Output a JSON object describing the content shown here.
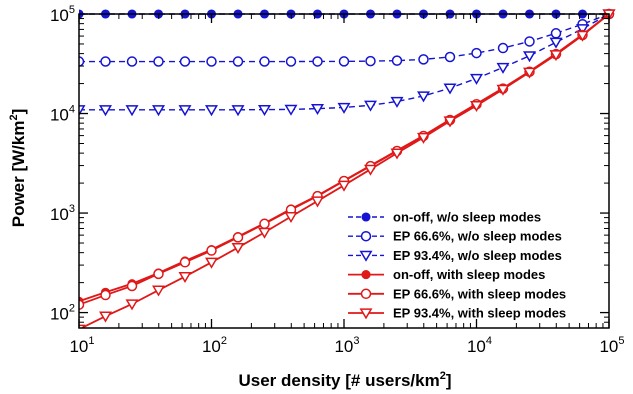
{
  "chart_data": {
    "type": "line",
    "x_scale": "log",
    "y_scale": "log",
    "xlim": [
      10,
      100000
    ],
    "ylim": [
      70,
      100000
    ],
    "xlabel": "User density [# users/km",
    "xlabel_sup": "2",
    "xlabel_end": "]",
    "ylabel": "Power [W/km",
    "ylabel_sup": "2",
    "ylabel_end": "]",
    "x_ticks": [
      {
        "value": 10,
        "base": "10",
        "exp": "1"
      },
      {
        "value": 100,
        "base": "10",
        "exp": "2"
      },
      {
        "value": 1000,
        "base": "10",
        "exp": "3"
      },
      {
        "value": 10000,
        "base": "10",
        "exp": "4"
      },
      {
        "value": 100000,
        "base": "10",
        "exp": "5"
      }
    ],
    "y_ticks": [
      {
        "value": 100,
        "base": "10",
        "exp": "2"
      },
      {
        "value": 1000,
        "base": "10",
        "exp": "3"
      },
      {
        "value": 10000,
        "base": "10",
        "exp": "4"
      },
      {
        "value": 100000,
        "base": "10",
        "exp": "5"
      }
    ],
    "grid": false,
    "legend_position": "bottom-right",
    "x": [
      10,
      15.85,
      25.12,
      39.81,
      63.1,
      100,
      158.5,
      251.2,
      398.1,
      631,
      1000,
      1585,
      2512,
      3981,
      6310,
      10000,
      15850,
      25120,
      39810,
      63100,
      100000
    ],
    "series": [
      {
        "name": "on-off, w/o sleep modes",
        "color": "#1414d2",
        "marker": "filled-circle",
        "dashed": true,
        "values": [
          100000,
          100000,
          100000,
          100000,
          100000,
          100000,
          100000,
          100000,
          100000,
          100000,
          100000,
          100000,
          100000,
          100000,
          100000,
          100000,
          100000,
          100000,
          100000,
          100000,
          100000
        ]
      },
      {
        "name": "EP 66.6%, w/o sleep modes",
        "color": "#1414d2",
        "marker": "open-circle",
        "dashed": true,
        "values": [
          33300,
          33300,
          33300,
          33300,
          33300,
          33300,
          33300,
          33300,
          33300,
          33350,
          33400,
          33600,
          34000,
          35000,
          37000,
          40500,
          45500,
          53000,
          64000,
          79000,
          100000
        ]
      },
      {
        "name": "EP 93.4%, w/o sleep modes",
        "color": "#1414d2",
        "marker": "open-triangle-down",
        "dashed": true,
        "values": [
          10900,
          10900,
          10900,
          10900,
          10900,
          10900,
          10900,
          10950,
          11000,
          11200,
          11500,
          12100,
          13200,
          15000,
          18000,
          22500,
          29000,
          38000,
          52000,
          71000,
          100000
        ]
      },
      {
        "name": "on-off, with sleep modes",
        "color": "#e01818",
        "marker": "filled-circle",
        "dashed": false,
        "values": [
          130,
          160,
          195,
          250,
          330,
          430,
          580,
          790,
          1100,
          1500,
          2120,
          3000,
          4250,
          6000,
          8700,
          12500,
          18000,
          26500,
          40000,
          62000,
          100000
        ]
      },
      {
        "name": "EP 66.6%, with sleep modes",
        "color": "#e01818",
        "marker": "open-circle",
        "dashed": false,
        "values": [
          120,
          150,
          185,
          245,
          320,
          420,
          570,
          780,
          1080,
          1480,
          2100,
          2960,
          4200,
          5950,
          8600,
          12400,
          17800,
          26300,
          39500,
          61500,
          100000
        ]
      },
      {
        "name": "EP 93.4%, with sleep modes",
        "color": "#e01818",
        "marker": "open-triangle-down",
        "dashed": false,
        "values": [
          68,
          92,
          122,
          168,
          230,
          320,
          450,
          640,
          920,
          1320,
          1900,
          2750,
          4000,
          5750,
          8400,
          12000,
          17500,
          26000,
          39000,
          61000,
          100000
        ]
      }
    ]
  }
}
